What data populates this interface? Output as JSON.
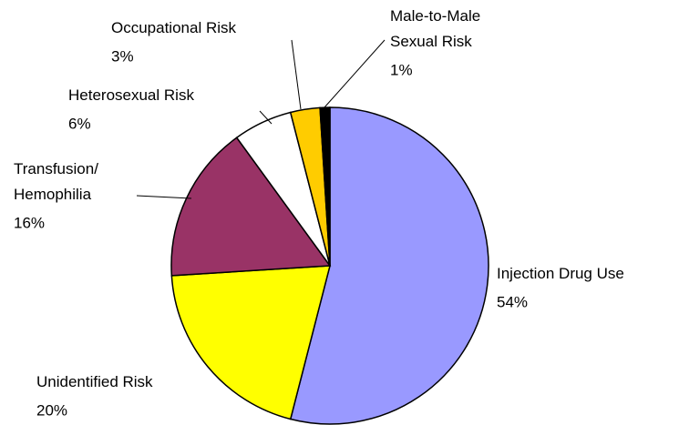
{
  "chart_data": {
    "type": "pie",
    "categories": [
      "Injection Drug Use",
      "Unidentified Risk",
      "Transfusion/\nHemophilia",
      "Heterosexual Risk",
      "Occupational Risk",
      "Male-to-Male\nSexual Risk"
    ],
    "values": [
      54,
      20,
      16,
      6,
      3,
      1
    ],
    "value_labels": [
      "54%",
      "20%",
      "16%",
      "6%",
      "3%",
      "1%"
    ],
    "colors": [
      "#9999ff",
      "#ffff00",
      "#993366",
      "#ffffff",
      "#ffcc00",
      "#000000"
    ]
  }
}
